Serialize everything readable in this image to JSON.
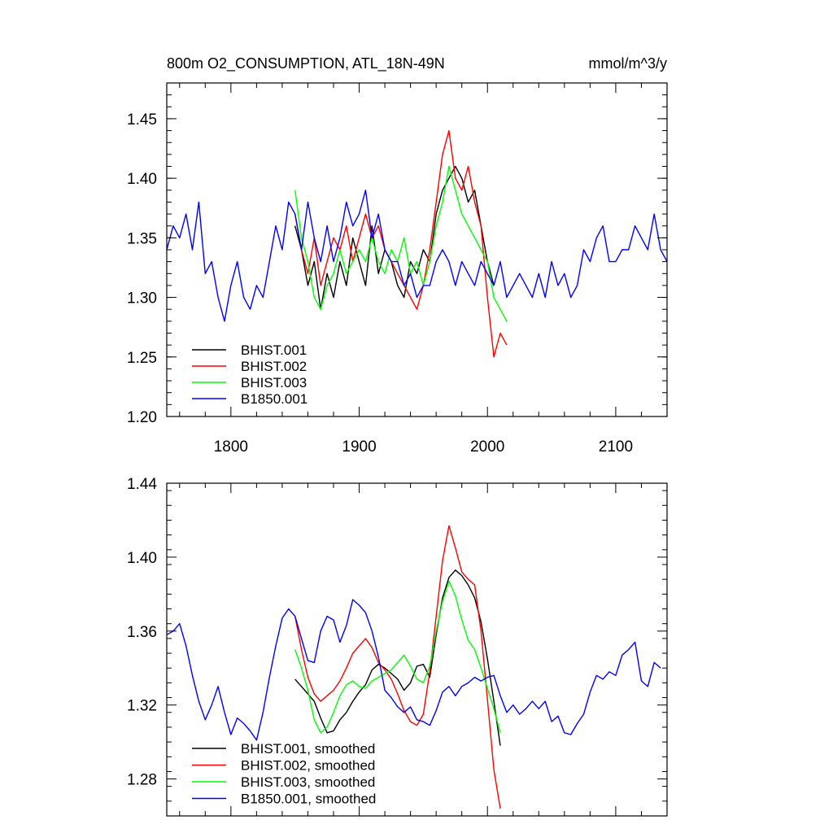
{
  "figure": {
    "title_left": "800m O2_CONSUMPTION, ATL_18N-49N",
    "title_right": "mmol/m^3/y"
  },
  "chart_data": [
    {
      "type": "line",
      "title": "800m O2_CONSUMPTION, ATL_18N-49N",
      "units": "mmol/m^3/y",
      "xlim": [
        1750,
        2140
      ],
      "ylim": [
        1.2,
        1.48
      ],
      "x_ticks": [
        1800,
        1900,
        2000,
        2100
      ],
      "x_tick_labels": [
        "1800",
        "1900",
        "2000",
        "2100"
      ],
      "y_ticks": [
        1.2,
        1.25,
        1.3,
        1.35,
        1.4,
        1.45
      ],
      "y_tick_labels": [
        "1.20",
        "1.25",
        "1.30",
        "1.35",
        "1.40",
        "1.45"
      ],
      "grid": false,
      "legend_position": "bottom-left",
      "series": [
        {
          "name": "BHIST.001",
          "color": "#000000",
          "x": [
            1850,
            1855,
            1860,
            1865,
            1870,
            1875,
            1880,
            1885,
            1890,
            1895,
            1900,
            1905,
            1910,
            1915,
            1920,
            1925,
            1930,
            1935,
            1940,
            1945,
            1950,
            1955,
            1960,
            1965,
            1970,
            1975,
            1980,
            1985,
            1990,
            1995,
            2000,
            2005
          ],
          "values": [
            1.36,
            1.34,
            1.31,
            1.33,
            1.29,
            1.32,
            1.3,
            1.33,
            1.31,
            1.35,
            1.33,
            1.31,
            1.36,
            1.32,
            1.34,
            1.33,
            1.31,
            1.3,
            1.33,
            1.32,
            1.34,
            1.33,
            1.37,
            1.39,
            1.4,
            1.41,
            1.4,
            1.38,
            1.39,
            1.36,
            1.33,
            1.31
          ]
        },
        {
          "name": "BHIST.002",
          "color": "#ff0000",
          "x": [
            1850,
            1855,
            1860,
            1865,
            1870,
            1875,
            1880,
            1885,
            1890,
            1895,
            1900,
            1905,
            1910,
            1915,
            1920,
            1925,
            1930,
            1935,
            1940,
            1945,
            1950,
            1955,
            1960,
            1965,
            1970,
            1975,
            1980,
            1985,
            1990,
            1995,
            2000,
            2005,
            2010,
            2015
          ],
          "values": [
            1.37,
            1.34,
            1.32,
            1.35,
            1.31,
            1.33,
            1.35,
            1.34,
            1.36,
            1.33,
            1.35,
            1.37,
            1.35,
            1.36,
            1.34,
            1.33,
            1.32,
            1.31,
            1.3,
            1.29,
            1.31,
            1.34,
            1.38,
            1.42,
            1.44,
            1.4,
            1.39,
            1.41,
            1.38,
            1.36,
            1.3,
            1.25,
            1.27,
            1.26
          ]
        },
        {
          "name": "BHIST.003",
          "color": "#00ff00",
          "x": [
            1850,
            1855,
            1860,
            1865,
            1870,
            1875,
            1880,
            1885,
            1890,
            1895,
            1900,
            1905,
            1910,
            1915,
            1920,
            1925,
            1930,
            1935,
            1940,
            1945,
            1950,
            1955,
            1960,
            1965,
            1970,
            1975,
            1980,
            1985,
            1990,
            1995,
            2000,
            2005,
            2010,
            2015
          ],
          "values": [
            1.39,
            1.35,
            1.33,
            1.3,
            1.29,
            1.31,
            1.32,
            1.34,
            1.32,
            1.33,
            1.34,
            1.33,
            1.35,
            1.33,
            1.32,
            1.34,
            1.33,
            1.35,
            1.32,
            1.33,
            1.31,
            1.33,
            1.36,
            1.38,
            1.41,
            1.39,
            1.37,
            1.36,
            1.35,
            1.34,
            1.33,
            1.3,
            1.29,
            1.28
          ]
        },
        {
          "name": "B1850.001",
          "color": "#0000ff",
          "x": [
            1750,
            1755,
            1760,
            1765,
            1770,
            1775,
            1780,
            1785,
            1790,
            1795,
            1800,
            1805,
            1810,
            1815,
            1820,
            1825,
            1830,
            1835,
            1840,
            1845,
            1850,
            1855,
            1860,
            1865,
            1870,
            1875,
            1880,
            1885,
            1890,
            1895,
            1900,
            1905,
            1910,
            1915,
            1920,
            1925,
            1930,
            1935,
            1940,
            1945,
            1950,
            1955,
            1960,
            1965,
            1970,
            1975,
            1980,
            1985,
            1990,
            1995,
            2000,
            2005,
            2010,
            2015,
            2020,
            2025,
            2030,
            2035,
            2040,
            2045,
            2050,
            2055,
            2060,
            2065,
            2070,
            2075,
            2080,
            2085,
            2090,
            2095,
            2100,
            2105,
            2110,
            2115,
            2120,
            2125,
            2130,
            2135,
            2140
          ],
          "values": [
            1.34,
            1.36,
            1.35,
            1.37,
            1.34,
            1.38,
            1.32,
            1.33,
            1.3,
            1.28,
            1.31,
            1.33,
            1.3,
            1.29,
            1.31,
            1.3,
            1.33,
            1.36,
            1.34,
            1.38,
            1.37,
            1.34,
            1.38,
            1.35,
            1.33,
            1.36,
            1.33,
            1.35,
            1.38,
            1.36,
            1.37,
            1.39,
            1.35,
            1.37,
            1.34,
            1.33,
            1.33,
            1.31,
            1.32,
            1.3,
            1.31,
            1.31,
            1.33,
            1.34,
            1.33,
            1.31,
            1.33,
            1.32,
            1.31,
            1.33,
            1.32,
            1.31,
            1.33,
            1.3,
            1.31,
            1.32,
            1.31,
            1.3,
            1.32,
            1.3,
            1.33,
            1.31,
            1.32,
            1.3,
            1.31,
            1.34,
            1.33,
            1.35,
            1.36,
            1.33,
            1.33,
            1.34,
            1.34,
            1.36,
            1.35,
            1.34,
            1.37,
            1.34,
            1.33
          ]
        }
      ],
      "legend": [
        "BHIST.001",
        "BHIST.002",
        "BHIST.003",
        "B1850.001"
      ]
    },
    {
      "type": "line",
      "xlim": [
        1750,
        2140
      ],
      "ylim": [
        1.26,
        1.44
      ],
      "x_ticks": [
        1800,
        1900,
        2000,
        2100
      ],
      "y_ticks": [
        1.28,
        1.32,
        1.36,
        1.4,
        1.44
      ],
      "y_tick_labels": [
        "1.28",
        "1.32",
        "1.36",
        "1.40",
        "1.44"
      ],
      "grid": false,
      "legend_position": "bottom-left",
      "series": [
        {
          "name": "BHIST.001, smoothed",
          "color": "#000000",
          "x": [
            1850,
            1855,
            1860,
            1865,
            1870,
            1875,
            1880,
            1885,
            1890,
            1895,
            1900,
            1905,
            1910,
            1915,
            1920,
            1925,
            1930,
            1935,
            1940,
            1945,
            1950,
            1955,
            1960,
            1965,
            1970,
            1975,
            1980,
            1985,
            1990,
            1995,
            2000,
            2005,
            2010
          ],
          "values": [
            1.334,
            1.33,
            1.326,
            1.322,
            1.313,
            1.305,
            1.306,
            1.312,
            1.316,
            1.322,
            1.327,
            1.331,
            1.339,
            1.342,
            1.34,
            1.337,
            1.334,
            1.328,
            1.332,
            1.341,
            1.342,
            1.335,
            1.358,
            1.378,
            1.389,
            1.393,
            1.39,
            1.385,
            1.378,
            1.365,
            1.345,
            1.322,
            1.298
          ]
        },
        {
          "name": "BHIST.002, smoothed",
          "color": "#ff0000",
          "x": [
            1850,
            1855,
            1860,
            1865,
            1870,
            1875,
            1880,
            1885,
            1890,
            1895,
            1900,
            1905,
            1910,
            1915,
            1920,
            1925,
            1930,
            1935,
            1940,
            1945,
            1950,
            1955,
            1960,
            1965,
            1970,
            1975,
            1980,
            1985,
            1990,
            1995,
            2000,
            2005,
            2010
          ],
          "values": [
            1.368,
            1.35,
            1.335,
            1.326,
            1.322,
            1.325,
            1.328,
            1.333,
            1.34,
            1.348,
            1.352,
            1.356,
            1.351,
            1.343,
            1.339,
            1.334,
            1.326,
            1.317,
            1.311,
            1.309,
            1.315,
            1.338,
            1.368,
            1.398,
            1.417,
            1.405,
            1.392,
            1.388,
            1.385,
            1.36,
            1.323,
            1.285,
            1.264
          ]
        },
        {
          "name": "BHIST.003, smoothed",
          "color": "#00ff00",
          "x": [
            1850,
            1855,
            1860,
            1865,
            1870,
            1875,
            1880,
            1885,
            1890,
            1895,
            1900,
            1905,
            1910,
            1915,
            1920,
            1925,
            1930,
            1935,
            1940,
            1945,
            1950,
            1955,
            1960,
            1965,
            1970,
            1975,
            1980,
            1985,
            1990,
            1995,
            2000,
            2005,
            2010
          ],
          "values": [
            1.35,
            1.34,
            1.328,
            1.312,
            1.305,
            1.308,
            1.316,
            1.325,
            1.331,
            1.333,
            1.33,
            1.329,
            1.333,
            1.335,
            1.337,
            1.339,
            1.343,
            1.347,
            1.341,
            1.334,
            1.332,
            1.341,
            1.36,
            1.376,
            1.387,
            1.379,
            1.366,
            1.355,
            1.35,
            1.34,
            1.329,
            1.318,
            1.305
          ]
        },
        {
          "name": "B1850.001, smoothed",
          "color": "#0000ff",
          "x": [
            1750,
            1755,
            1760,
            1765,
            1770,
            1775,
            1780,
            1785,
            1790,
            1795,
            1800,
            1805,
            1810,
            1815,
            1820,
            1825,
            1830,
            1835,
            1840,
            1845,
            1850,
            1855,
            1860,
            1865,
            1870,
            1875,
            1880,
            1885,
            1890,
            1895,
            1900,
            1905,
            1910,
            1915,
            1920,
            1925,
            1930,
            1935,
            1940,
            1945,
            1950,
            1955,
            1960,
            1965,
            1970,
            1975,
            1980,
            1985,
            1990,
            1995,
            2000,
            2005,
            2010,
            2015,
            2020,
            2025,
            2030,
            2035,
            2040,
            2045,
            2050,
            2055,
            2060,
            2065,
            2070,
            2075,
            2080,
            2085,
            2090,
            2095,
            2100,
            2105,
            2110,
            2115,
            2120,
            2125,
            2130,
            2135
          ],
          "values": [
            1.358,
            1.36,
            1.364,
            1.352,
            1.336,
            1.322,
            1.312,
            1.32,
            1.33,
            1.316,
            1.304,
            1.313,
            1.31,
            1.306,
            1.301,
            1.316,
            1.335,
            1.352,
            1.367,
            1.372,
            1.368,
            1.356,
            1.344,
            1.343,
            1.36,
            1.368,
            1.366,
            1.354,
            1.363,
            1.377,
            1.374,
            1.37,
            1.36,
            1.346,
            1.328,
            1.324,
            1.319,
            1.316,
            1.319,
            1.312,
            1.311,
            1.309,
            1.317,
            1.327,
            1.33,
            1.325,
            1.33,
            1.332,
            1.335,
            1.333,
            1.335,
            1.336,
            1.325,
            1.316,
            1.32,
            1.315,
            1.318,
            1.322,
            1.318,
            1.322,
            1.311,
            1.314,
            1.305,
            1.304,
            1.31,
            1.315,
            1.327,
            1.336,
            1.334,
            1.338,
            1.336,
            1.347,
            1.35,
            1.354,
            1.333,
            1.33,
            1.343,
            1.34
          ]
        }
      ],
      "legend": [
        "BHIST.001, smoothed",
        "BHIST.002, smoothed",
        "BHIST.003, smoothed",
        "B1850.001, smoothed"
      ]
    }
  ]
}
